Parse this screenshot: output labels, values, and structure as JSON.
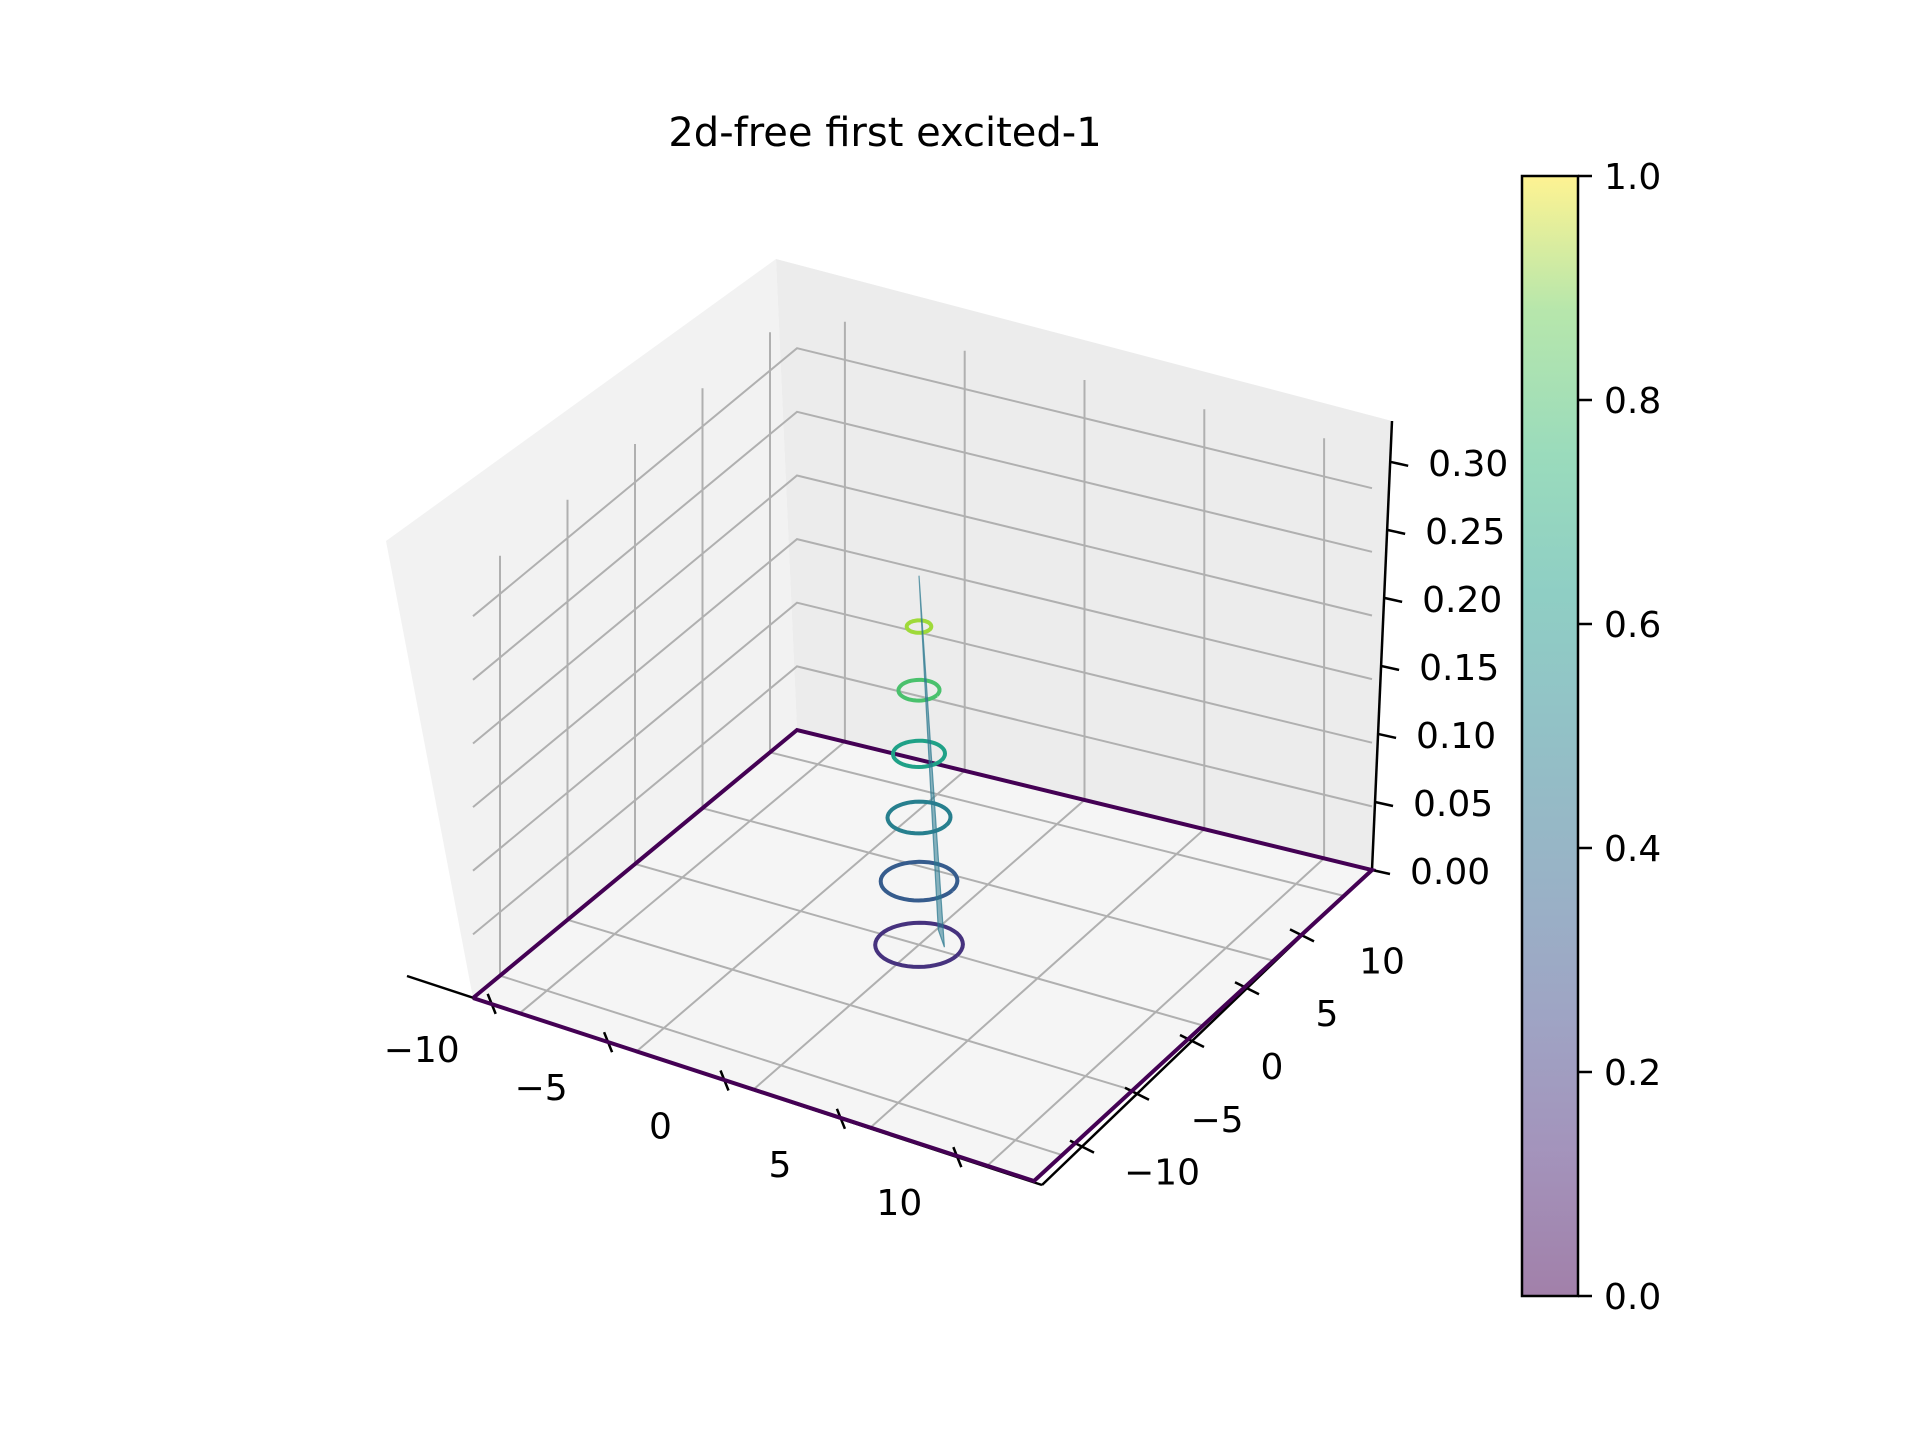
{
  "chart_data": {
    "type": "surface3d",
    "title": "2d-free first excited-1",
    "xlabel": "",
    "ylabel": "",
    "zlabel": "",
    "x_ticks": [
      "−10",
      "−5",
      "0",
      "5",
      "10"
    ],
    "x_tick_values": [
      -10,
      -5,
      0,
      5,
      10
    ],
    "y_ticks": [
      "−10",
      "−5",
      "0",
      "5",
      "10"
    ],
    "y_tick_values": [
      -10,
      -5,
      0,
      5,
      10
    ],
    "z_ticks": [
      "0.00",
      "0.05",
      "0.10",
      "0.15",
      "0.20",
      "0.25",
      "0.30"
    ],
    "z_tick_values": [
      0,
      0.05,
      0.1,
      0.15,
      0.2,
      0.25,
      0.3
    ],
    "xlim": [
      -12,
      12
    ],
    "ylim": [
      -12,
      12
    ],
    "zlim": [
      0,
      0.33
    ],
    "grid": true,
    "surface": {
      "peak_z": 0.28,
      "colormap": "viridis",
      "alpha": 0.5
    },
    "contours": [
      {
        "level": 0.0,
        "radius": 12,
        "shape": "square",
        "color": "#440154"
      },
      {
        "level": 0.0,
        "radius": 1.6,
        "color": "#46327e"
      },
      {
        "level": 0.05,
        "radius": 1.4,
        "color": "#365c8d"
      },
      {
        "level": 0.1,
        "radius": 1.15,
        "color": "#277f8e"
      },
      {
        "level": 0.15,
        "radius": 0.95,
        "color": "#1fa187"
      },
      {
        "level": 0.2,
        "radius": 0.75,
        "color": "#4ac16d"
      },
      {
        "level": 0.25,
        "radius": 0.45,
        "color": "#9fda3a"
      }
    ],
    "colorbar": {
      "ticks": [
        "0.0",
        "0.2",
        "0.4",
        "0.6",
        "0.8",
        "1.0"
      ],
      "tick_values": [
        0,
        0.2,
        0.4,
        0.6,
        0.8,
        1.0
      ],
      "range": [
        0,
        1
      ],
      "colormap": "viridis",
      "alpha": 0.5
    }
  }
}
